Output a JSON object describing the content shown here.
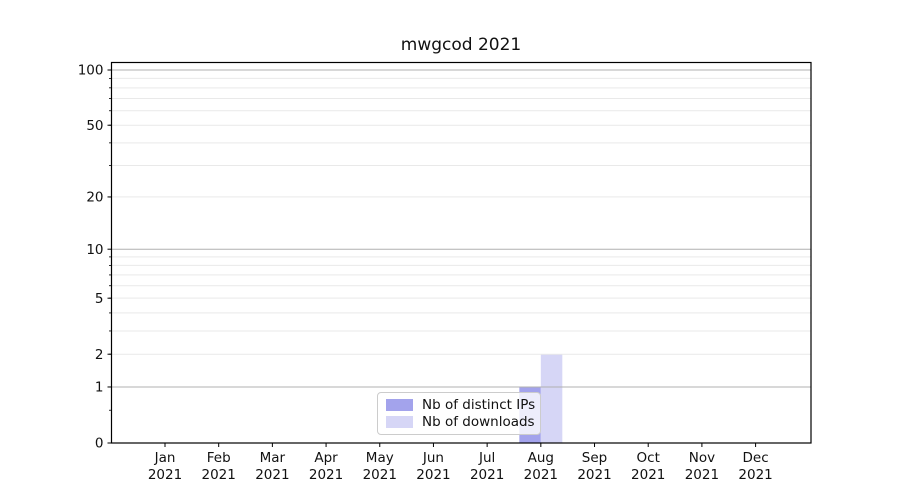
{
  "title": "mwgcod 2021",
  "chart_data": {
    "type": "bar",
    "title": "mwgcod 2021",
    "categories": [
      "Jan",
      "Feb",
      "Mar",
      "Apr",
      "May",
      "Jun",
      "Jul",
      "Aug",
      "Sep",
      "Oct",
      "Nov",
      "Dec"
    ],
    "category_year": "2021",
    "series": [
      {
        "name": "Nb of distinct IPs",
        "color": "#a3a3ec",
        "values": [
          0,
          0,
          0,
          0,
          0,
          0,
          0,
          1,
          0,
          0,
          0,
          0
        ]
      },
      {
        "name": "Nb of downloads",
        "color": "#d6d6f6",
        "values": [
          0,
          0,
          0,
          0,
          0,
          0,
          0,
          2,
          0,
          0,
          0,
          0
        ]
      }
    ],
    "xlabel": "",
    "ylabel": "",
    "yscale": "log1p",
    "ylim": [
      0,
      110
    ],
    "y_ticks": [
      0,
      1,
      2,
      5,
      10,
      20,
      50,
      100
    ],
    "y_major_gridlines": [
      1,
      10,
      100
    ],
    "y_minor_gridlines": [
      2,
      3,
      4,
      5,
      6,
      7,
      8,
      9,
      20,
      30,
      40,
      50,
      60,
      70,
      80,
      90
    ],
    "grid": true,
    "legend_position": "lower center"
  },
  "colors": {
    "background": "#ffffff",
    "axis": "#000000",
    "text": "#111111",
    "major_grid": "#b0b0b0",
    "minor_grid": "#e9e9e9",
    "legend_border": "#cccccc",
    "bar_distinct_ips": "#a3a3ec",
    "bar_downloads": "#d6d6f6"
  }
}
